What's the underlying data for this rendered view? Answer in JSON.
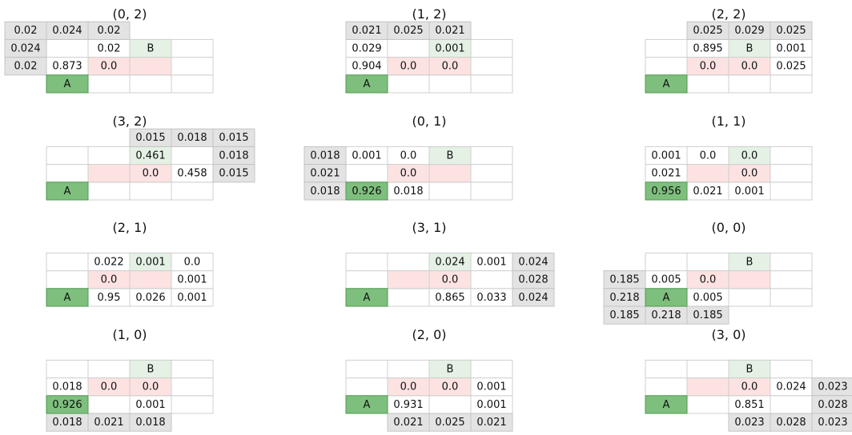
{
  "colors": {
    "agent": "#7ebf7e",
    "goal": "#e4f1e4",
    "forbidden": "#fde2e2",
    "outside": "#e3e3e3",
    "border": "#cfcfcf",
    "text": "#111111"
  },
  "chart_data": {
    "type": "table",
    "grid": {
      "cols": 4,
      "rows": 3
    },
    "agent_label": "A",
    "goal_label": "B",
    "panels": [
      {
        "title": "(0, 2)",
        "col": 0,
        "row": 0,
        "agent": [
          0,
          0
        ],
        "goal": [
          2,
          2
        ],
        "forbidden": [
          [
            1,
            1
          ],
          [
            2,
            1
          ]
        ],
        "cells": [
          [
            -1,
            3,
            "0.02"
          ],
          [
            0,
            3,
            "0.024"
          ],
          [
            1,
            3,
            "0.02"
          ],
          [
            -1,
            2,
            "0.024"
          ],
          [
            1,
            2,
            "0.02"
          ],
          [
            -1,
            1,
            "0.02"
          ],
          [
            0,
            1,
            "0.873"
          ],
          [
            1,
            1,
            "0.0"
          ]
        ]
      },
      {
        "title": "(1, 2)",
        "col": 1,
        "row": 0,
        "agent": [
          0,
          0
        ],
        "goal": [
          2,
          2
        ],
        "forbidden": [
          [
            1,
            1
          ],
          [
            2,
            1
          ]
        ],
        "cells": [
          [
            0,
            3,
            "0.021"
          ],
          [
            1,
            3,
            "0.025"
          ],
          [
            2,
            3,
            "0.021"
          ],
          [
            0,
            2,
            "0.029"
          ],
          [
            2,
            2,
            "0.001"
          ],
          [
            0,
            1,
            "0.904"
          ],
          [
            1,
            1,
            "0.0"
          ],
          [
            2,
            1,
            "0.0"
          ]
        ]
      },
      {
        "title": "(2, 2)",
        "col": 2,
        "row": 0,
        "agent": [
          0,
          0
        ],
        "goal": [
          2,
          2
        ],
        "forbidden": [
          [
            1,
            1
          ],
          [
            2,
            1
          ]
        ],
        "cells": [
          [
            1,
            3,
            "0.025"
          ],
          [
            2,
            3,
            "0.029"
          ],
          [
            3,
            3,
            "0.025"
          ],
          [
            1,
            2,
            "0.895"
          ],
          [
            3,
            2,
            "0.001"
          ],
          [
            1,
            1,
            "0.0"
          ],
          [
            2,
            1,
            "0.0"
          ],
          [
            3,
            1,
            "0.025"
          ]
        ]
      },
      {
        "title": "(3, 2)",
        "col": 0,
        "row": 1,
        "agent": [
          0,
          0
        ],
        "goal": [
          2,
          2
        ],
        "forbidden": [
          [
            1,
            1
          ],
          [
            2,
            1
          ]
        ],
        "cells": [
          [
            2,
            3,
            "0.015"
          ],
          [
            3,
            3,
            "0.018"
          ],
          [
            4,
            3,
            "0.015"
          ],
          [
            2,
            2,
            "0.461"
          ],
          [
            4,
            2,
            "0.018"
          ],
          [
            2,
            1,
            "0.0"
          ],
          [
            3,
            1,
            "0.458"
          ],
          [
            4,
            1,
            "0.015"
          ]
        ]
      },
      {
        "title": "(0, 1)",
        "col": 1,
        "row": 1,
        "agent": [
          0,
          0
        ],
        "goal": [
          2,
          2
        ],
        "forbidden": [
          [
            1,
            1
          ],
          [
            2,
            1
          ]
        ],
        "cells": [
          [
            -1,
            2,
            "0.018"
          ],
          [
            0,
            2,
            "0.001"
          ],
          [
            1,
            2,
            "0.0"
          ],
          [
            -1,
            1,
            "0.021"
          ],
          [
            1,
            1,
            "0.0"
          ],
          [
            -1,
            0,
            "0.018"
          ],
          [
            0,
            0,
            "0.926"
          ],
          [
            1,
            0,
            "0.018"
          ]
        ]
      },
      {
        "title": "(1, 1)",
        "col": 2,
        "row": 1,
        "agent": [
          0,
          0
        ],
        "goal": [
          2,
          2
        ],
        "forbidden": [
          [
            1,
            1
          ],
          [
            2,
            1
          ]
        ],
        "cells": [
          [
            0,
            2,
            "0.001"
          ],
          [
            1,
            2,
            "0.0"
          ],
          [
            2,
            2,
            "0.0"
          ],
          [
            0,
            1,
            "0.021"
          ],
          [
            2,
            1,
            "0.0"
          ],
          [
            0,
            0,
            "0.956"
          ],
          [
            1,
            0,
            "0.021"
          ],
          [
            2,
            0,
            "0.001"
          ]
        ]
      },
      {
        "title": "(2, 1)",
        "col": 0,
        "row": 2,
        "agent": [
          0,
          0
        ],
        "goal": [
          2,
          2
        ],
        "forbidden": [
          [
            1,
            1
          ],
          [
            2,
            1
          ]
        ],
        "cells": [
          [
            1,
            2,
            "0.022"
          ],
          [
            2,
            2,
            "0.001"
          ],
          [
            3,
            2,
            "0.0"
          ],
          [
            1,
            1,
            "0.0"
          ],
          [
            3,
            1,
            "0.001"
          ],
          [
            1,
            0,
            "0.95"
          ],
          [
            2,
            0,
            "0.026"
          ],
          [
            3,
            0,
            "0.001"
          ]
        ]
      },
      {
        "title": "(3, 1)",
        "col": 1,
        "row": 2,
        "agent": [
          0,
          0
        ],
        "goal": [
          2,
          2
        ],
        "forbidden": [
          [
            1,
            1
          ],
          [
            2,
            1
          ]
        ],
        "cells": [
          [
            2,
            2,
            "0.024"
          ],
          [
            3,
            2,
            "0.001"
          ],
          [
            4,
            2,
            "0.024"
          ],
          [
            2,
            1,
            "0.0"
          ],
          [
            4,
            1,
            "0.028"
          ],
          [
            2,
            0,
            "0.865"
          ],
          [
            3,
            0,
            "0.033"
          ],
          [
            4,
            0,
            "0.024"
          ]
        ]
      },
      {
        "title": "(0, 0)",
        "col": 2,
        "row": 2,
        "agent": [
          0,
          0
        ],
        "goal": [
          2,
          2
        ],
        "forbidden": [
          [
            1,
            1
          ],
          [
            2,
            1
          ]
        ],
        "cells": [
          [
            -1,
            1,
            "0.185"
          ],
          [
            0,
            1,
            "0.005"
          ],
          [
            1,
            1,
            "0.0"
          ],
          [
            -1,
            0,
            "0.218"
          ],
          [
            1,
            0,
            "0.005"
          ],
          [
            -1,
            -1,
            "0.185"
          ],
          [
            0,
            -1,
            "0.218"
          ],
          [
            1,
            -1,
            "0.185"
          ]
        ]
      },
      {
        "title": "(1, 0)",
        "col": 0,
        "row": 3,
        "agent": [
          0,
          0
        ],
        "goal": [
          2,
          2
        ],
        "forbidden": [
          [
            1,
            1
          ],
          [
            2,
            1
          ]
        ],
        "cells": [
          [
            0,
            1,
            "0.018"
          ],
          [
            1,
            1,
            "0.0"
          ],
          [
            2,
            1,
            "0.0"
          ],
          [
            0,
            0,
            "0.926"
          ],
          [
            2,
            0,
            "0.001"
          ],
          [
            0,
            -1,
            "0.018"
          ],
          [
            1,
            -1,
            "0.021"
          ],
          [
            2,
            -1,
            "0.018"
          ]
        ]
      },
      {
        "title": "(2, 0)",
        "col": 1,
        "row": 3,
        "agent": [
          0,
          0
        ],
        "goal": [
          2,
          2
        ],
        "forbidden": [
          [
            1,
            1
          ],
          [
            2,
            1
          ]
        ],
        "cells": [
          [
            1,
            1,
            "0.0"
          ],
          [
            2,
            1,
            "0.0"
          ],
          [
            3,
            1,
            "0.001"
          ],
          [
            1,
            0,
            "0.931"
          ],
          [
            3,
            0,
            "0.001"
          ],
          [
            1,
            -1,
            "0.021"
          ],
          [
            2,
            -1,
            "0.025"
          ],
          [
            3,
            -1,
            "0.021"
          ]
        ]
      },
      {
        "title": "(3, 0)",
        "col": 2,
        "row": 3,
        "agent": [
          0,
          0
        ],
        "goal": [
          2,
          2
        ],
        "forbidden": [
          [
            1,
            1
          ],
          [
            2,
            1
          ]
        ],
        "cells": [
          [
            2,
            1,
            "0.0"
          ],
          [
            3,
            1,
            "0.024"
          ],
          [
            4,
            1,
            "0.023"
          ],
          [
            2,
            0,
            "0.851"
          ],
          [
            4,
            0,
            "0.028"
          ],
          [
            2,
            -1,
            "0.023"
          ],
          [
            3,
            -1,
            "0.028"
          ],
          [
            4,
            -1,
            "0.023"
          ]
        ]
      }
    ]
  }
}
